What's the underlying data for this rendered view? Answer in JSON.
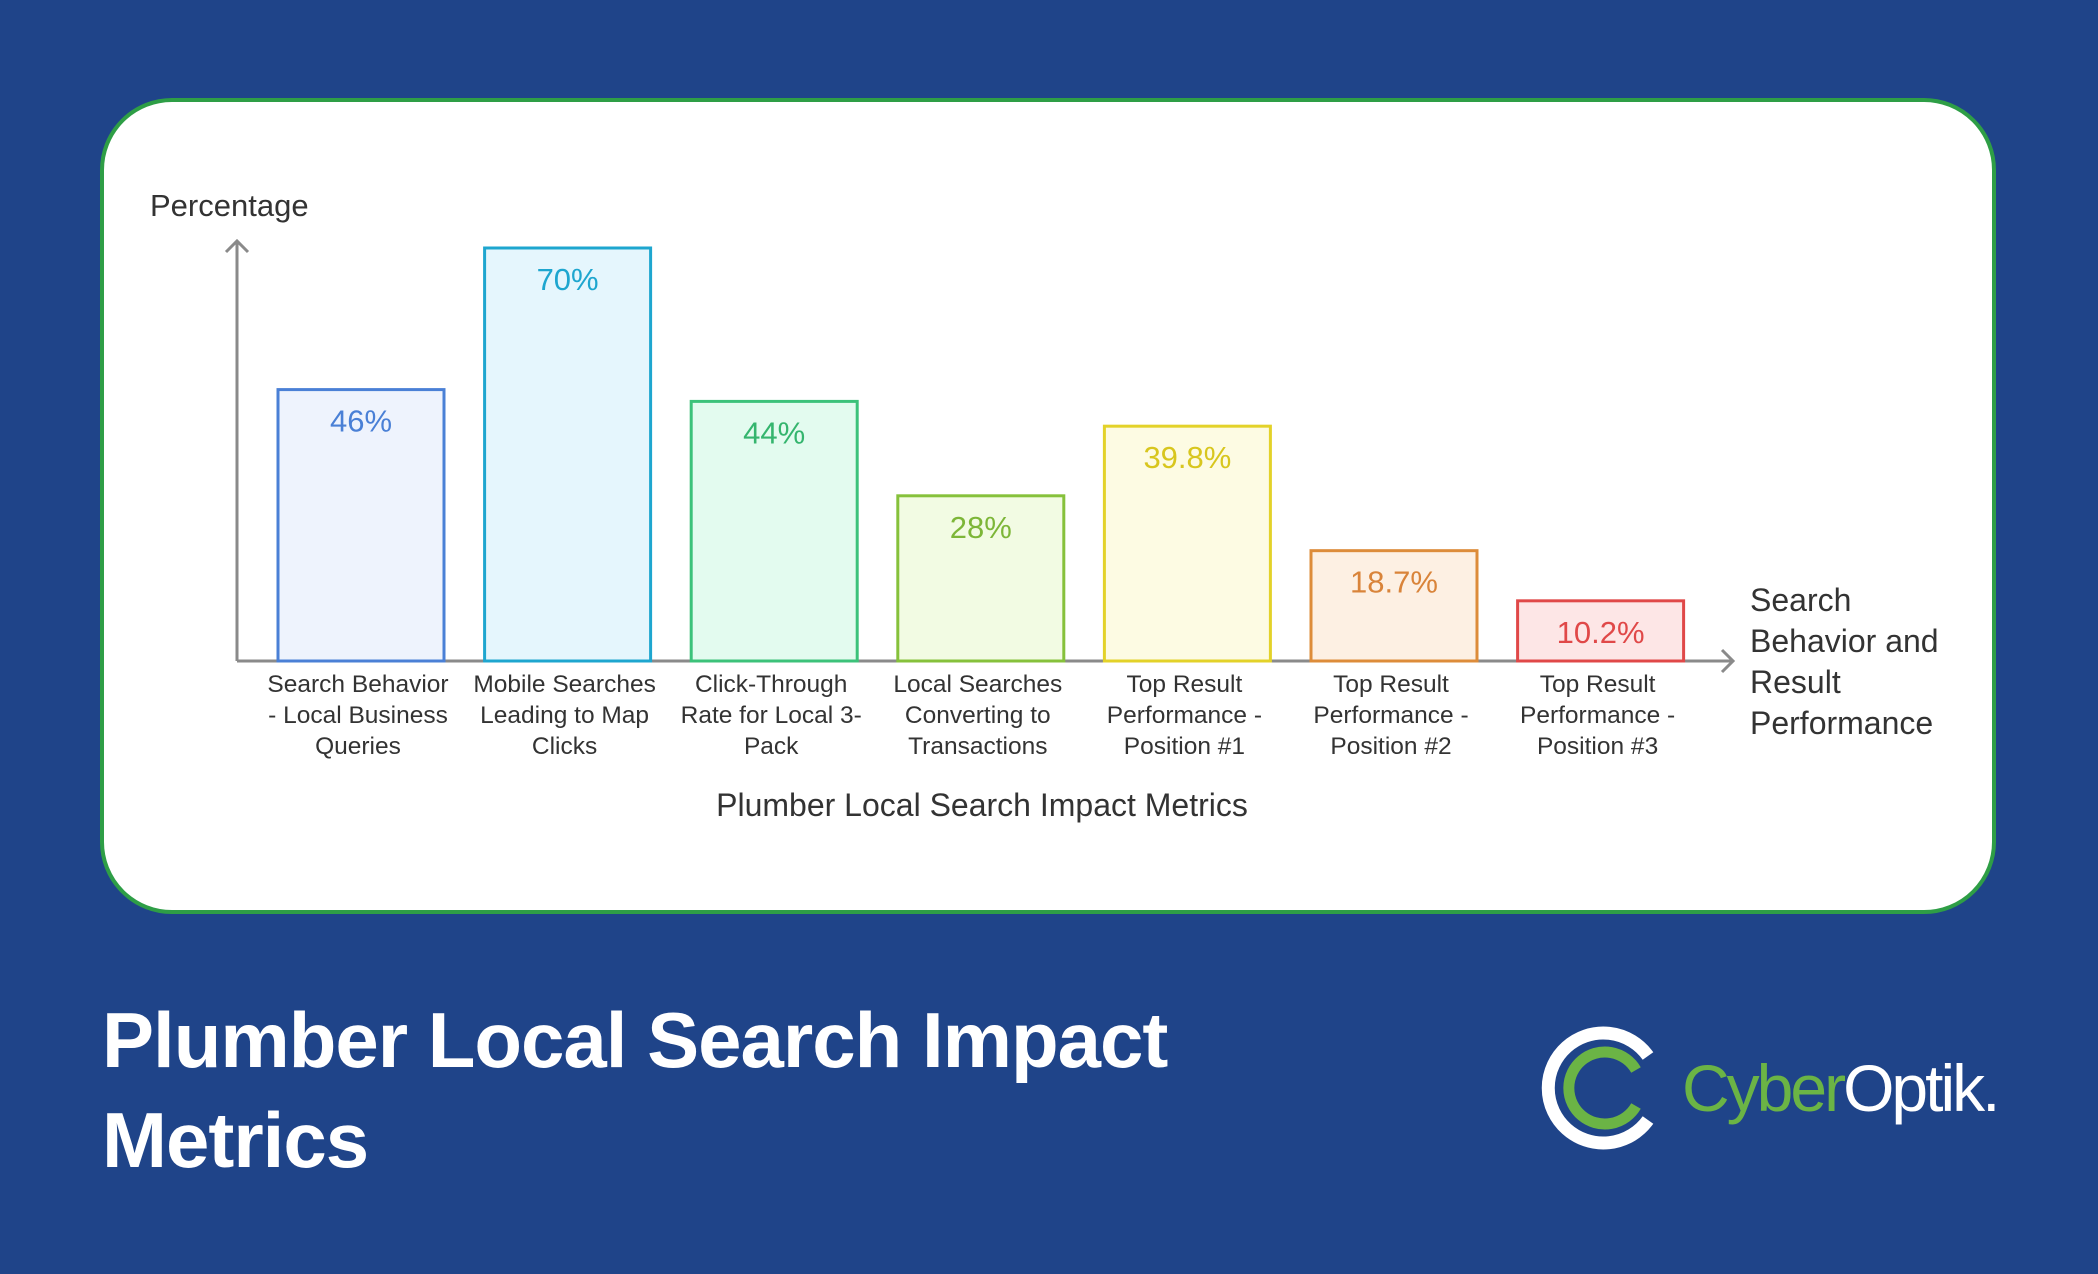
{
  "chart_data": {
    "type": "bar",
    "ylabel": "Percentage",
    "xlabel": "Plumber Local Search Impact Metrics",
    "axis_note": "Search Behavior and Result Performance",
    "categories": [
      "Search Behavior - Local Business Queries",
      "Mobile Searches Leading to Map Clicks",
      "Click-Through Rate for Local 3-Pack",
      "Local Searches Converting to Transactions",
      "Top Result Performance - Position #1",
      "Top Result Performance - Position #2",
      "Top Result Performance - Position #3"
    ],
    "category_lines": [
      [
        "Search Behavior",
        "- Local Business",
        "Queries"
      ],
      [
        "Mobile Searches",
        "Leading to Map",
        "Clicks"
      ],
      [
        "Click-Through",
        "Rate for Local 3-",
        "Pack"
      ],
      [
        "Local Searches",
        "Converting to",
        "Transactions"
      ],
      [
        "Top Result",
        "Performance -",
        "Position #1"
      ],
      [
        "Top Result",
        "Performance -",
        "Position #2"
      ],
      [
        "Top Result",
        "Performance -",
        "Position #3"
      ]
    ],
    "values": [
      46,
      70,
      44,
      28,
      39.8,
      18.7,
      10.2
    ],
    "value_labels": [
      "46%",
      "70%",
      "44%",
      "28%",
      "39.8%",
      "18.7%",
      "10.2%"
    ],
    "colors": [
      {
        "stroke": "#4a80d6",
        "fill": "#eef3fd",
        "text": "#4a80d6"
      },
      {
        "stroke": "#1ea6cf",
        "fill": "#e5f6fd",
        "text": "#1ea6cf"
      },
      {
        "stroke": "#3cc27a",
        "fill": "#e3fbef",
        "text": "#35b56e"
      },
      {
        "stroke": "#86c13b",
        "fill": "#f2fbe3",
        "text": "#7db638"
      },
      {
        "stroke": "#e3d229",
        "fill": "#fdfbe3",
        "text": "#d8c61e"
      },
      {
        "stroke": "#dd8c3a",
        "fill": "#fdf0e3",
        "text": "#d9843a"
      },
      {
        "stroke": "#e04848",
        "fill": "#fde6e6",
        "text": "#e04848"
      }
    ],
    "ylim": [
      0,
      70
    ],
    "grid": false,
    "legend": "none"
  },
  "title_line1": "Plumber Local Search Impact",
  "title_line2": "Metrics",
  "logo": {
    "part1": "Cyber",
    "part2": "Optik."
  },
  "colors": {
    "background": "#1f4489",
    "card_border": "#2e9e46",
    "axis": "#8a8a8a",
    "logo_green": "#6bb445"
  }
}
